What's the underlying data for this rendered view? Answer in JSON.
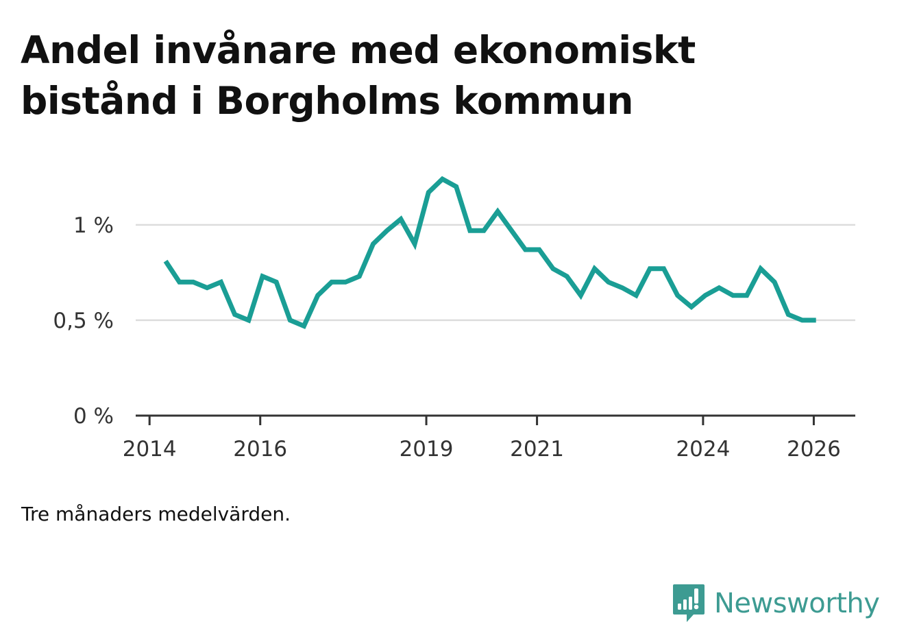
{
  "title": "Andel invånare med ekonomiskt bistånd i Borgholms kommun",
  "note": "Tre månaders medelvärden.",
  "brand": {
    "name": "Newsworthy",
    "icon": "newsworthy-logo-icon",
    "color": "#3d9b92"
  },
  "chart_data": {
    "type": "line",
    "title": "Andel invånare med ekonomiskt bistånd i Borgholms kommun",
    "xlabel": "",
    "ylabel": "",
    "xlim": [
      2013.75,
      2026.75
    ],
    "ylim": [
      0,
      1.1
    ],
    "grid": true,
    "line_color": "#1a9e95",
    "x_ticks": [
      {
        "value": 2014,
        "label": "2014"
      },
      {
        "value": 2016,
        "label": "2016"
      },
      {
        "value": 2019,
        "label": "2019"
      },
      {
        "value": 2021,
        "label": "2021"
      },
      {
        "value": 2024,
        "label": "2024"
      },
      {
        "value": 2026,
        "label": "2026"
      }
    ],
    "y_ticks": [
      {
        "value": 0,
        "label": "0 %"
      },
      {
        "value": 0.5,
        "label": "0,5 %"
      },
      {
        "value": 1,
        "label": "1 %"
      }
    ],
    "series": [
      {
        "name": "Andel invånare med ekonomiskt bistånd",
        "x": [
          2014.29,
          2014.54,
          2014.79,
          2015.04,
          2015.29,
          2015.54,
          2015.79,
          2016.04,
          2016.29,
          2016.54,
          2016.79,
          2017.04,
          2017.29,
          2017.54,
          2017.79,
          2018.04,
          2018.29,
          2018.54,
          2018.79,
          2019.04,
          2019.29,
          2019.54,
          2019.79,
          2020.04,
          2020.29,
          2020.54,
          2020.79,
          2021.04,
          2021.29,
          2021.54,
          2021.79,
          2022.04,
          2022.29,
          2022.54,
          2022.79,
          2023.04,
          2023.29,
          2023.54,
          2023.79,
          2024.04,
          2024.29,
          2024.54,
          2024.79,
          2025.04,
          2025.29,
          2025.54,
          2025.79,
          2026.04
        ],
        "values": [
          0.81,
          0.7,
          0.7,
          0.67,
          0.7,
          0.53,
          0.5,
          0.73,
          0.7,
          0.5,
          0.47,
          0.63,
          0.7,
          0.7,
          0.73,
          0.9,
          0.97,
          1.03,
          0.9,
          1.17,
          1.24,
          1.2,
          0.97,
          0.97,
          1.07,
          0.97,
          0.87,
          0.87,
          0.77,
          0.73,
          0.63,
          0.77,
          0.7,
          0.67,
          0.63,
          0.77,
          0.77,
          0.63,
          0.57,
          0.63,
          0.67,
          0.63,
          0.63,
          0.77,
          0.7,
          0.53,
          0.5,
          0.5
        ]
      }
    ]
  }
}
